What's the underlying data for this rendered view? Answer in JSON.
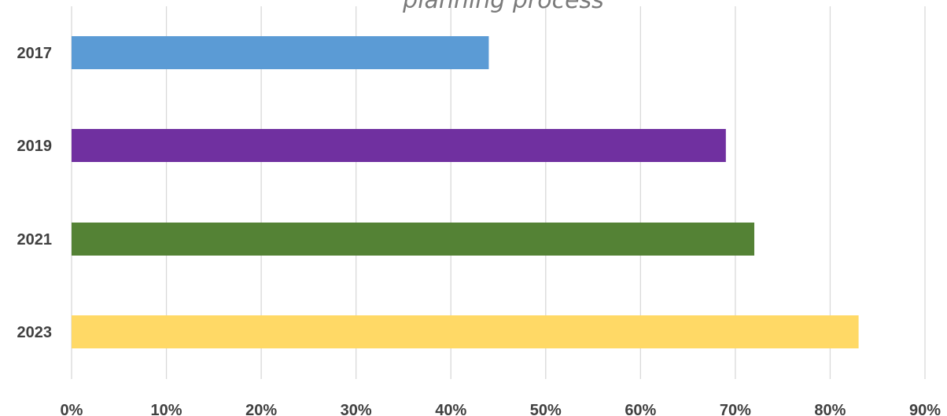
{
  "chart_data": {
    "type": "bar",
    "orientation": "horizontal",
    "title": "planning process",
    "categories": [
      "2017",
      "2019",
      "2021",
      "2023"
    ],
    "values": [
      44,
      69,
      72,
      83
    ],
    "value_format": "percent",
    "xlim": [
      0,
      90
    ],
    "x_ticks": [
      "0%",
      "10%",
      "20%",
      "30%",
      "40%",
      "50%",
      "60%",
      "70%",
      "80%",
      "90%"
    ],
    "grid": "vertical",
    "legend": "none",
    "colors": [
      "#5b9bd5",
      "#7030a0",
      "#548235",
      "#ffd966"
    ],
    "gridline_color": "#d9d9d9"
  }
}
